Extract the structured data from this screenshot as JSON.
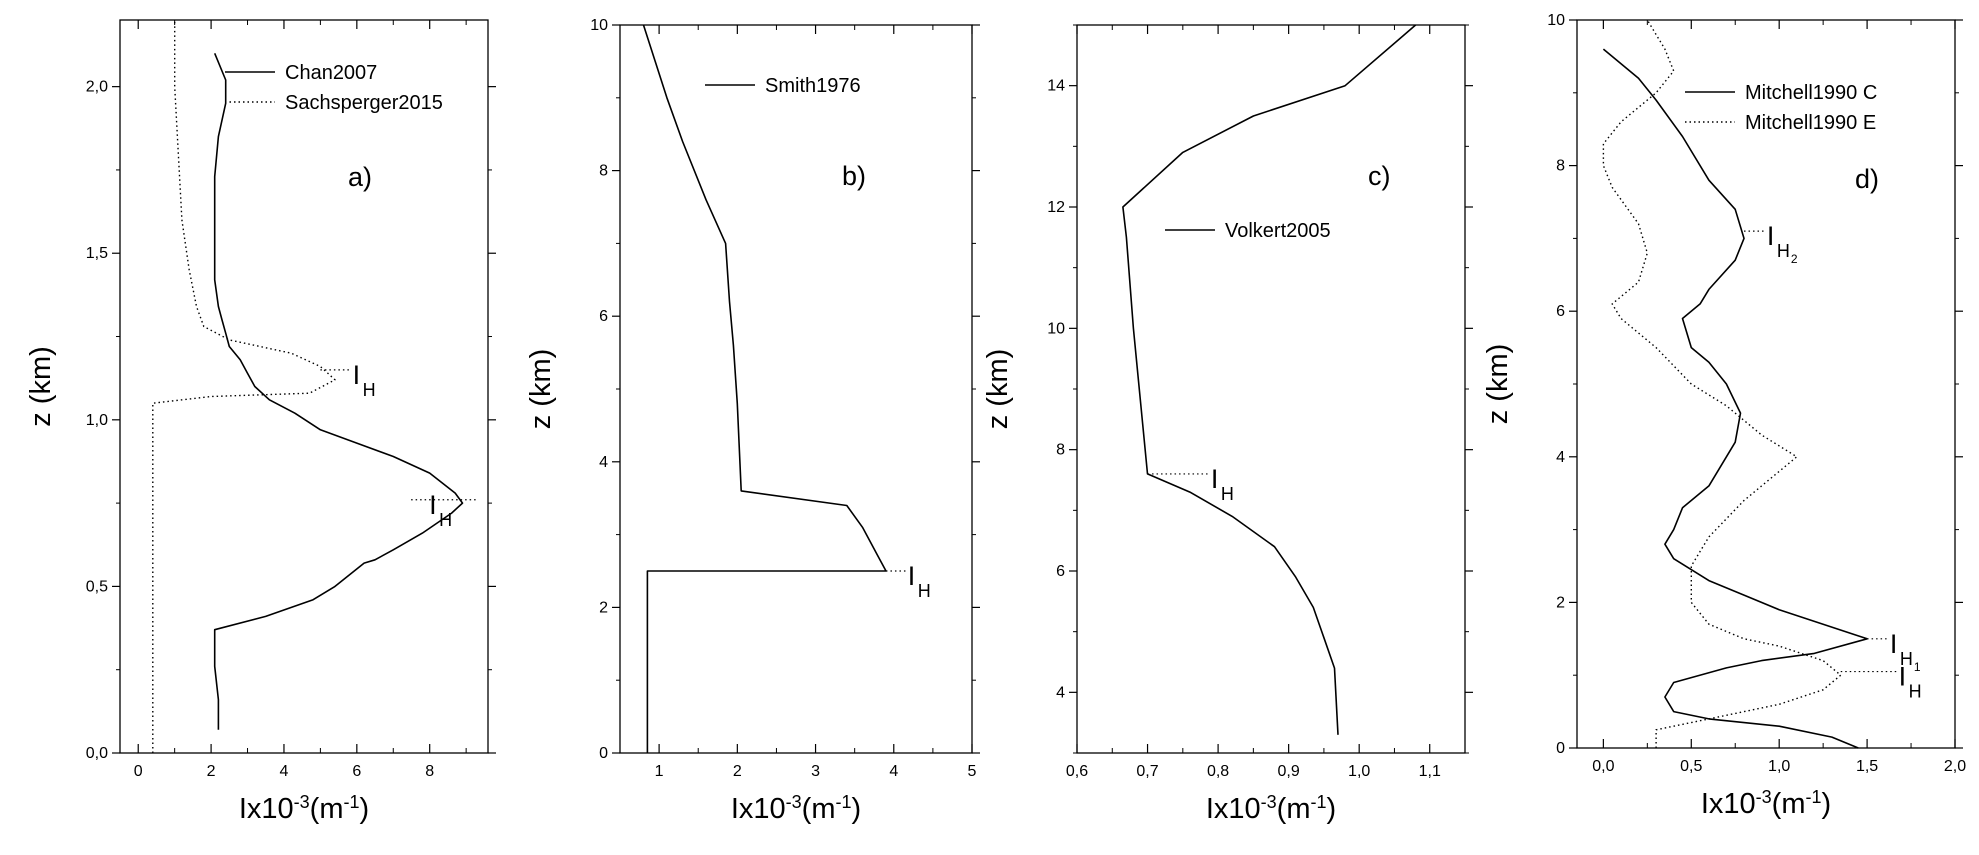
{
  "chart_data": [
    {
      "type": "line",
      "panel_label": "a)",
      "xlabel_base": "Ix10",
      "xlabel_exp": "-3",
      "xlabel_unit": "(m",
      "xlabel_unit_exp": "-1",
      "xlabel_close": ")",
      "ylabel": "z (km)",
      "xlim": [
        -0.5,
        9.6
      ],
      "ylim": [
        0,
        2.2
      ],
      "xticks": [
        {
          "v": 0,
          "label": "0"
        },
        {
          "v": 2,
          "label": "2"
        },
        {
          "v": 4,
          "label": "4"
        },
        {
          "v": 6,
          "label": "6"
        },
        {
          "v": 8,
          "label": "8"
        }
      ],
      "yticks": [
        {
          "v": 0,
          "label": "0,0"
        },
        {
          "v": 0.5,
          "label": "0,5"
        },
        {
          "v": 1.0,
          "label": "1,0"
        },
        {
          "v": 1.5,
          "label": "1,5"
        },
        {
          "v": 2.0,
          "label": "2,0"
        }
      ],
      "legend_position": "top-right",
      "series": [
        {
          "name": "Chan2007",
          "style": "solid",
          "points": [
            [
              2.2,
              0.07
            ],
            [
              2.2,
              0.16
            ],
            [
              2.1,
              0.26
            ],
            [
              2.1,
              0.37
            ],
            [
              3.5,
              0.41
            ],
            [
              4.8,
              0.46
            ],
            [
              5.4,
              0.5
            ],
            [
              6.2,
              0.57
            ],
            [
              6.5,
              0.58
            ],
            [
              7.0,
              0.61
            ],
            [
              7.8,
              0.66
            ],
            [
              8.6,
              0.72
            ],
            [
              8.9,
              0.75
            ],
            [
              8.7,
              0.78
            ],
            [
              8.0,
              0.84
            ],
            [
              7.0,
              0.89
            ],
            [
              6.0,
              0.93
            ],
            [
              5.0,
              0.97
            ],
            [
              4.3,
              1.02
            ],
            [
              3.6,
              1.06
            ],
            [
              3.2,
              1.1
            ],
            [
              3.0,
              1.14
            ],
            [
              2.8,
              1.18
            ],
            [
              2.5,
              1.22
            ],
            [
              2.4,
              1.26
            ],
            [
              2.3,
              1.3
            ],
            [
              2.2,
              1.34
            ],
            [
              2.1,
              1.42
            ],
            [
              2.1,
              1.6
            ],
            [
              2.1,
              1.73
            ],
            [
              2.2,
              1.85
            ],
            [
              2.4,
              1.95
            ],
            [
              2.4,
              2.02
            ],
            [
              2.1,
              2.1
            ]
          ]
        },
        {
          "name": "Sachsperger2015",
          "style": "dotted",
          "points": [
            [
              0.4,
              0.0
            ],
            [
              0.4,
              0.4
            ],
            [
              0.4,
              0.8
            ],
            [
              0.4,
              1.05
            ],
            [
              2.0,
              1.07
            ],
            [
              4.7,
              1.08
            ],
            [
              5.4,
              1.12
            ],
            [
              5.0,
              1.16
            ],
            [
              4.2,
              1.2
            ],
            [
              2.5,
              1.24
            ],
            [
              1.8,
              1.28
            ],
            [
              1.6,
              1.34
            ],
            [
              1.4,
              1.45
            ],
            [
              1.2,
              1.6
            ],
            [
              1.1,
              1.8
            ],
            [
              1.0,
              2.0
            ],
            [
              1.0,
              2.2
            ]
          ]
        }
      ],
      "annotations": [
        {
          "label": "I",
          "sub": "H",
          "x": 5.5,
          "y": 1.15,
          "ref_from": 5.0
        },
        {
          "label": "I",
          "sub": "H",
          "x": 7.6,
          "y": 0.76,
          "ref_from": 8.85
        }
      ]
    },
    {
      "type": "line",
      "panel_label": "b)",
      "xlabel_base": "Ix10",
      "xlabel_exp": "-3",
      "xlabel_unit": "(m",
      "xlabel_unit_exp": "-1",
      "xlabel_close": ")",
      "ylabel": "z (km)",
      "xlim": [
        0.5,
        5.0
      ],
      "ylim": [
        0,
        10
      ],
      "xticks": [
        {
          "v": 1,
          "label": "1"
        },
        {
          "v": 2,
          "label": "2"
        },
        {
          "v": 3,
          "label": "3"
        },
        {
          "v": 4,
          "label": "4"
        },
        {
          "v": 5,
          "label": "5"
        }
      ],
      "yticks": [
        {
          "v": 0,
          "label": "0"
        },
        {
          "v": 2,
          "label": "2"
        },
        {
          "v": 4,
          "label": "4"
        },
        {
          "v": 6,
          "label": "6"
        },
        {
          "v": 8,
          "label": "8"
        },
        {
          "v": 10,
          "label": "10"
        }
      ],
      "legend_position": "top-right",
      "series": [
        {
          "name": "Smith1976",
          "style": "solid",
          "points": [
            [
              0.85,
              0
            ],
            [
              0.85,
              2.5
            ],
            [
              3.9,
              2.5
            ],
            [
              3.8,
              2.7
            ],
            [
              3.6,
              3.1
            ],
            [
              3.4,
              3.4
            ],
            [
              2.05,
              3.6
            ],
            [
              2.0,
              4.8
            ],
            [
              1.95,
              5.6
            ],
            [
              1.9,
              6.2
            ],
            [
              1.85,
              7.0
            ],
            [
              1.6,
              7.6
            ],
            [
              1.3,
              8.4
            ],
            [
              1.1,
              9.0
            ],
            [
              0.95,
              9.5
            ],
            [
              0.8,
              10.0
            ]
          ]
        }
      ],
      "annotations": [
        {
          "label": "I",
          "sub": "H",
          "x": 4.0,
          "y": 2.5,
          "ref_from": 3.9
        }
      ]
    },
    {
      "type": "line",
      "panel_label": "c)",
      "xlabel_base": "Ix10",
      "xlabel_exp": "-3",
      "xlabel_unit": "(m",
      "xlabel_unit_exp": "-1",
      "xlabel_close": ")",
      "ylabel": "z (km)",
      "xlim": [
        0.6,
        1.15
      ],
      "ylim": [
        3,
        15
      ],
      "xticks": [
        {
          "v": 0.6,
          "label": "0,6"
        },
        {
          "v": 0.7,
          "label": "0,7"
        },
        {
          "v": 0.8,
          "label": "0,8"
        },
        {
          "v": 0.9,
          "label": "0,9"
        },
        {
          "v": 1.0,
          "label": "1,0"
        },
        {
          "v": 1.1,
          "label": "1,1"
        }
      ],
      "yticks": [
        {
          "v": 4,
          "label": "4"
        },
        {
          "v": 6,
          "label": "6"
        },
        {
          "v": 8,
          "label": "8"
        },
        {
          "v": 10,
          "label": "10"
        },
        {
          "v": 12,
          "label": "12"
        },
        {
          "v": 14,
          "label": "14"
        }
      ],
      "legend_position": "center-right",
      "series": [
        {
          "name": "Volkert2005",
          "style": "solid",
          "points": [
            [
              0.97,
              3.3
            ],
            [
              0.965,
              4.4
            ],
            [
              0.95,
              4.9
            ],
            [
              0.935,
              5.4
            ],
            [
              0.91,
              5.9
            ],
            [
              0.88,
              6.4
            ],
            [
              0.82,
              6.9
            ],
            [
              0.76,
              7.3
            ],
            [
              0.7,
              7.6
            ],
            [
              0.68,
              10.0
            ],
            [
              0.67,
              11.5
            ],
            [
              0.665,
              12.0
            ],
            [
              0.75,
              12.9
            ],
            [
              0.85,
              13.5
            ],
            [
              0.98,
              14.0
            ],
            [
              1.08,
              15.0
            ]
          ]
        }
      ],
      "annotations": [
        {
          "label": "I",
          "sub": "H",
          "x": 0.77,
          "y": 7.6,
          "ref_from": 0.7
        }
      ]
    },
    {
      "type": "line",
      "panel_label": "d)",
      "xlabel_base": "Ix10",
      "xlabel_exp": "-3",
      "xlabel_unit": "(m",
      "xlabel_unit_exp": "-1",
      "xlabel_close": ")",
      "ylabel": "z (km)",
      "xlim": [
        -0.15,
        2.0
      ],
      "ylim": [
        0,
        10
      ],
      "xticks": [
        {
          "v": 0,
          "label": "0,0"
        },
        {
          "v": 0.5,
          "label": "0,5"
        },
        {
          "v": 1.0,
          "label": "1,0"
        },
        {
          "v": 1.5,
          "label": "1,5"
        },
        {
          "v": 2.0,
          "label": "2,0"
        }
      ],
      "yticks": [
        {
          "v": 0,
          "label": "0"
        },
        {
          "v": 2,
          "label": "2"
        },
        {
          "v": 4,
          "label": "4"
        },
        {
          "v": 6,
          "label": "6"
        },
        {
          "v": 8,
          "label": "8"
        },
        {
          "v": 10,
          "label": "10"
        }
      ],
      "legend_position": "top-right",
      "series": [
        {
          "name": "Mitchell1990 C",
          "style": "solid",
          "points": [
            [
              1.45,
              0.0
            ],
            [
              1.3,
              0.15
            ],
            [
              1.0,
              0.3
            ],
            [
              0.6,
              0.4
            ],
            [
              0.4,
              0.5
            ],
            [
              0.35,
              0.7
            ],
            [
              0.4,
              0.9
            ],
            [
              0.7,
              1.1
            ],
            [
              0.9,
              1.2
            ],
            [
              1.2,
              1.3
            ],
            [
              1.5,
              1.5
            ],
            [
              1.25,
              1.7
            ],
            [
              1.0,
              1.9
            ],
            [
              0.8,
              2.1
            ],
            [
              0.6,
              2.3
            ],
            [
              0.4,
              2.6
            ],
            [
              0.35,
              2.8
            ],
            [
              0.4,
              3.0
            ],
            [
              0.45,
              3.3
            ],
            [
              0.6,
              3.6
            ],
            [
              0.75,
              4.2
            ],
            [
              0.78,
              4.6
            ],
            [
              0.7,
              5.0
            ],
            [
              0.6,
              5.3
            ],
            [
              0.5,
              5.5
            ],
            [
              0.45,
              5.9
            ],
            [
              0.55,
              6.1
            ],
            [
              0.6,
              6.3
            ],
            [
              0.75,
              6.7
            ],
            [
              0.8,
              7.0
            ],
            [
              0.75,
              7.4
            ],
            [
              0.6,
              7.8
            ],
            [
              0.45,
              8.4
            ],
            [
              0.3,
              8.9
            ],
            [
              0.2,
              9.2
            ],
            [
              0.0,
              9.6
            ]
          ]
        },
        {
          "name": "Mitchell1990 E",
          "style": "dotted",
          "points": [
            [
              0.3,
              0.0
            ],
            [
              0.3,
              0.25
            ],
            [
              0.6,
              0.4
            ],
            [
              1.0,
              0.6
            ],
            [
              1.25,
              0.8
            ],
            [
              1.35,
              1.0
            ],
            [
              1.25,
              1.2
            ],
            [
              1.0,
              1.4
            ],
            [
              0.8,
              1.5
            ],
            [
              0.6,
              1.7
            ],
            [
              0.5,
              2.0
            ],
            [
              0.5,
              2.5
            ],
            [
              0.6,
              2.9
            ],
            [
              0.8,
              3.4
            ],
            [
              1.1,
              4.0
            ],
            [
              0.9,
              4.3
            ],
            [
              0.7,
              4.7
            ],
            [
              0.5,
              5.0
            ],
            [
              0.3,
              5.5
            ],
            [
              0.1,
              5.9
            ],
            [
              0.05,
              6.1
            ],
            [
              0.2,
              6.4
            ],
            [
              0.25,
              6.8
            ],
            [
              0.2,
              7.2
            ],
            [
              0.05,
              7.7
            ],
            [
              0.0,
              8.0
            ],
            [
              0.0,
              8.3
            ],
            [
              0.1,
              8.6
            ],
            [
              0.3,
              9.0
            ],
            [
              0.4,
              9.3
            ],
            [
              0.35,
              9.6
            ],
            [
              0.25,
              10.0
            ]
          ]
        }
      ],
      "annotations": [
        {
          "label": "I",
          "sub": "H",
          "subsub": "2",
          "x": 0.85,
          "y": 7.1,
          "ref_from": 0.8
        },
        {
          "label": "I",
          "sub": "H",
          "subsub": "1",
          "x": 1.55,
          "y": 1.5,
          "ref_from": 1.5
        },
        {
          "label": "I",
          "sub": "H",
          "x": 1.6,
          "y": 1.05,
          "ref_from": 1.35
        }
      ]
    }
  ]
}
